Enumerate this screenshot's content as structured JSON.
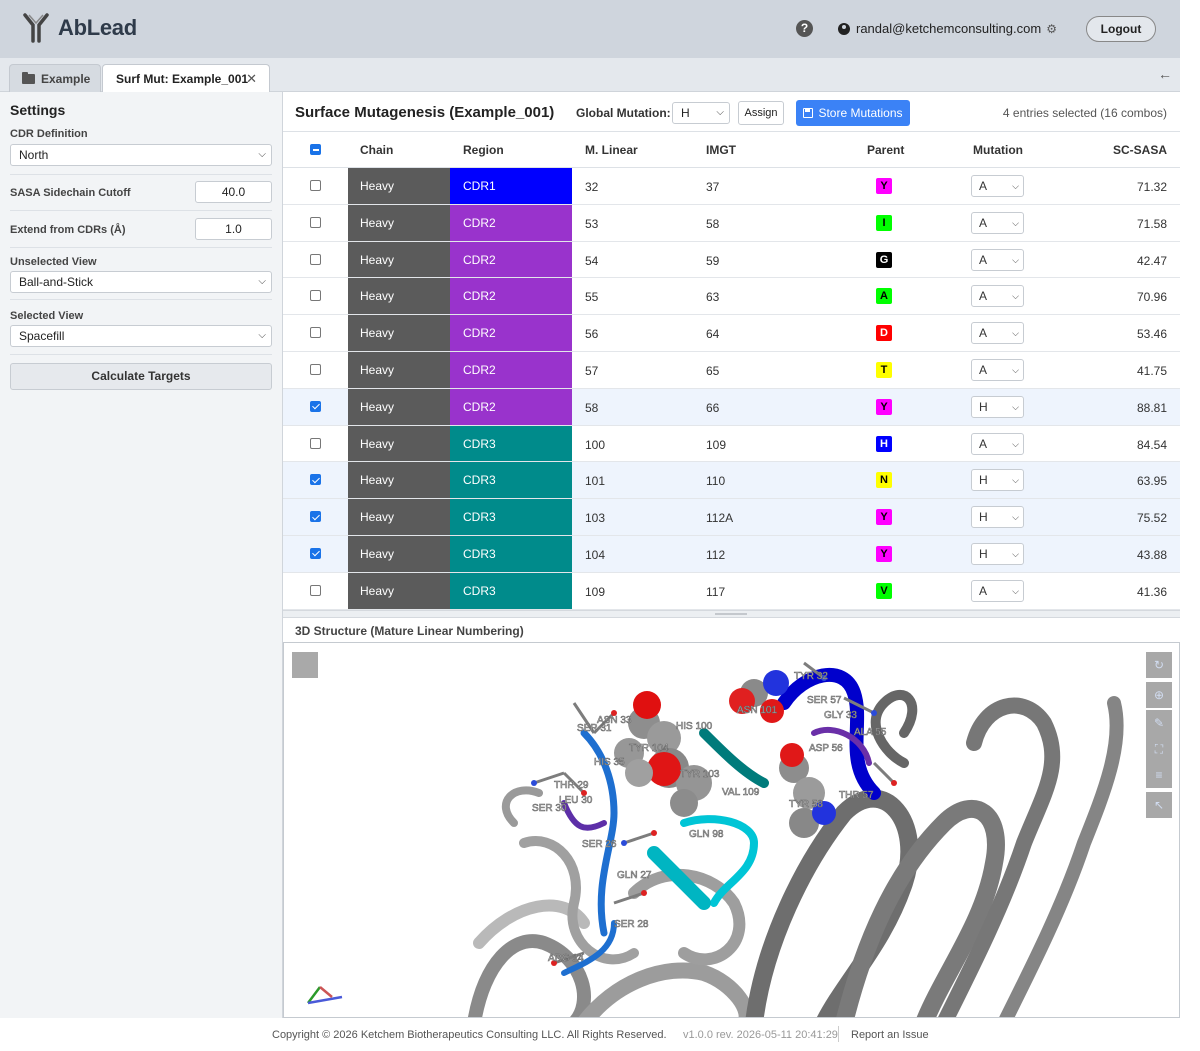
{
  "app": {
    "name": "AbLead"
  },
  "header": {
    "user_email": "randal@ketchemconsulting.com",
    "logout_label": "Logout",
    "help_label": "?"
  },
  "tabs": [
    {
      "label": "Example"
    },
    {
      "label": "Surf Mut: Example_001",
      "active": true
    }
  ],
  "settings": {
    "title": "Settings",
    "cdr_definition_label": "CDR Definition",
    "cdr_definition_value": "North",
    "sasa_cutoff_label": "SASA Sidechain Cutoff",
    "sasa_cutoff_value": "40.0",
    "extend_label": "Extend from CDRs (Å)",
    "extend_value": "1.0",
    "unselected_view_label": "Unselected View",
    "unselected_view_value": "Ball-and-Stick",
    "selected_view_label": "Selected View",
    "selected_view_value": "Spacefill",
    "calculate_label": "Calculate Targets"
  },
  "main": {
    "title": "Surface Mutagenesis (Example_001)",
    "global_mutation_label": "Global Mutation:",
    "global_mutation_value": "H",
    "assign_label": "Assign",
    "store_label": "Store Mutations",
    "selection_summary": "4 entries selected (16 combos)"
  },
  "table": {
    "headers": [
      "Chain",
      "Region",
      "M. Linear",
      "IMGT",
      "Parent",
      "Mutation",
      "SC-SASA"
    ],
    "rows": [
      {
        "checked": false,
        "chain": "Heavy",
        "region": "CDR1",
        "linear": "32",
        "imgt": "37",
        "parent": "Y",
        "mutation": "A",
        "sasa": "71.32"
      },
      {
        "checked": false,
        "chain": "Heavy",
        "region": "CDR2",
        "linear": "53",
        "imgt": "58",
        "parent": "I",
        "mutation": "A",
        "sasa": "71.58"
      },
      {
        "checked": false,
        "chain": "Heavy",
        "region": "CDR2",
        "linear": "54",
        "imgt": "59",
        "parent": "G",
        "mutation": "A",
        "sasa": "42.47"
      },
      {
        "checked": false,
        "chain": "Heavy",
        "region": "CDR2",
        "linear": "55",
        "imgt": "63",
        "parent": "A",
        "mutation": "A",
        "sasa": "70.96"
      },
      {
        "checked": false,
        "chain": "Heavy",
        "region": "CDR2",
        "linear": "56",
        "imgt": "64",
        "parent": "D",
        "mutation": "A",
        "sasa": "53.46"
      },
      {
        "checked": false,
        "chain": "Heavy",
        "region": "CDR2",
        "linear": "57",
        "imgt": "65",
        "parent": "T",
        "mutation": "A",
        "sasa": "41.75"
      },
      {
        "checked": true,
        "chain": "Heavy",
        "region": "CDR2",
        "linear": "58",
        "imgt": "66",
        "parent": "Y",
        "mutation": "H",
        "sasa": "88.81"
      },
      {
        "checked": false,
        "chain": "Heavy",
        "region": "CDR3",
        "linear": "100",
        "imgt": "109",
        "parent": "H",
        "mutation": "A",
        "sasa": "84.54"
      },
      {
        "checked": true,
        "chain": "Heavy",
        "region": "CDR3",
        "linear": "101",
        "imgt": "110",
        "parent": "N",
        "mutation": "H",
        "sasa": "63.95"
      },
      {
        "checked": true,
        "chain": "Heavy",
        "region": "CDR3",
        "linear": "103",
        "imgt": "112A",
        "parent": "Y",
        "mutation": "H",
        "sasa": "75.52"
      },
      {
        "checked": true,
        "chain": "Heavy",
        "region": "CDR3",
        "linear": "104",
        "imgt": "112",
        "parent": "Y",
        "mutation": "H",
        "sasa": "43.88"
      },
      {
        "checked": false,
        "chain": "Heavy",
        "region": "CDR3",
        "linear": "109",
        "imgt": "117",
        "parent": "V",
        "mutation": "A",
        "sasa": "41.36"
      }
    ]
  },
  "colors": {
    "chain": "#5b5b5b",
    "regions": {
      "CDR1": "#0000ff",
      "CDR2": "#9933cc",
      "CDR3": "#008b8b"
    },
    "residues": {
      "Y": {
        "bg": "#ff00ff",
        "fg": "#000000"
      },
      "I": {
        "bg": "#00ff00",
        "fg": "#000000"
      },
      "G": {
        "bg": "#000000",
        "fg": "#ffffff"
      },
      "A": {
        "bg": "#00ff00",
        "fg": "#000000"
      },
      "D": {
        "bg": "#ff0000",
        "fg": "#ffffff"
      },
      "T": {
        "bg": "#ffff00",
        "fg": "#000000"
      },
      "H": {
        "bg": "#0000ff",
        "fg": "#ffffff"
      },
      "N": {
        "bg": "#ffff00",
        "fg": "#000000"
      },
      "V": {
        "bg": "#00ff00",
        "fg": "#000000"
      }
    },
    "accent": "#3b82f6"
  },
  "structure": {
    "title": "3D Structure (Mature Linear Numbering)",
    "labels": [
      "TYR 32",
      "SER 31",
      "ASN 33",
      "GLY 33",
      "ALA 55",
      "HIS 100",
      "ASN 101",
      "TYR 103",
      "TYR 104",
      "ASP 56",
      "THR 57",
      "TYR 58",
      "VAL 109",
      "GLN 98",
      "SER 26",
      "LEU 30",
      "THR 29",
      "SER 57",
      "GLN 27",
      "SER 28",
      "ARG 24",
      "HIS 35",
      "SER 30"
    ]
  },
  "footer": {
    "copyright": "Copyright © 2026 Ketchem Biotherapeutics Consulting LLC. All Rights Reserved.",
    "version": "v1.0.0 rev. 2026-05-11 20:41:29",
    "report_issue": "Report an Issue"
  }
}
